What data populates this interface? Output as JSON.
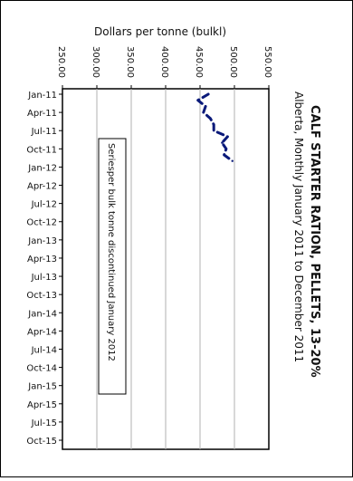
{
  "chart_data": {
    "type": "line",
    "title": "CALF STARTER RATION, PELLETS, 13-20%",
    "subtitle": "Alberta, Monthly January 2011 to December 2011",
    "ylabel": "Dollars per tonne (bulkl)",
    "ylim": [
      250,
      550
    ],
    "y_ticks": [
      "250.00",
      "300.00",
      "350.00",
      "400.00",
      "450.00",
      "500.00",
      "550.00"
    ],
    "x_ticks": [
      "Jan-11",
      "Apr-11",
      "Jul-11",
      "Oct-11",
      "Jan-12",
      "Apr-12",
      "Jul-12",
      "Oct-12",
      "Jan-13",
      "Apr-13",
      "Jul-13",
      "Oct-13",
      "Jan-14",
      "Apr-14",
      "Jul-14",
      "Oct-14",
      "Jan-15",
      "Apr-15",
      "Jul-15",
      "Oct-15"
    ],
    "annotation": "Seriesper bulk tonne discontinued January 2012",
    "series": [
      {
        "x": [
          "Jan-11",
          "Feb-11",
          "Mar-11",
          "Apr-11",
          "May-11",
          "Jun-11",
          "Jul-11",
          "Aug-11",
          "Sep-11",
          "Oct-11",
          "Nov-11",
          "Dec-11"
        ],
        "values": [
          462,
          447,
          458,
          455,
          465,
          470,
          470,
          490,
          482,
          488,
          485,
          497
        ]
      }
    ],
    "grid": true,
    "colors": {
      "series": "#0a1a7a",
      "grid": "#b0b0b0",
      "axis": "#000000"
    }
  }
}
